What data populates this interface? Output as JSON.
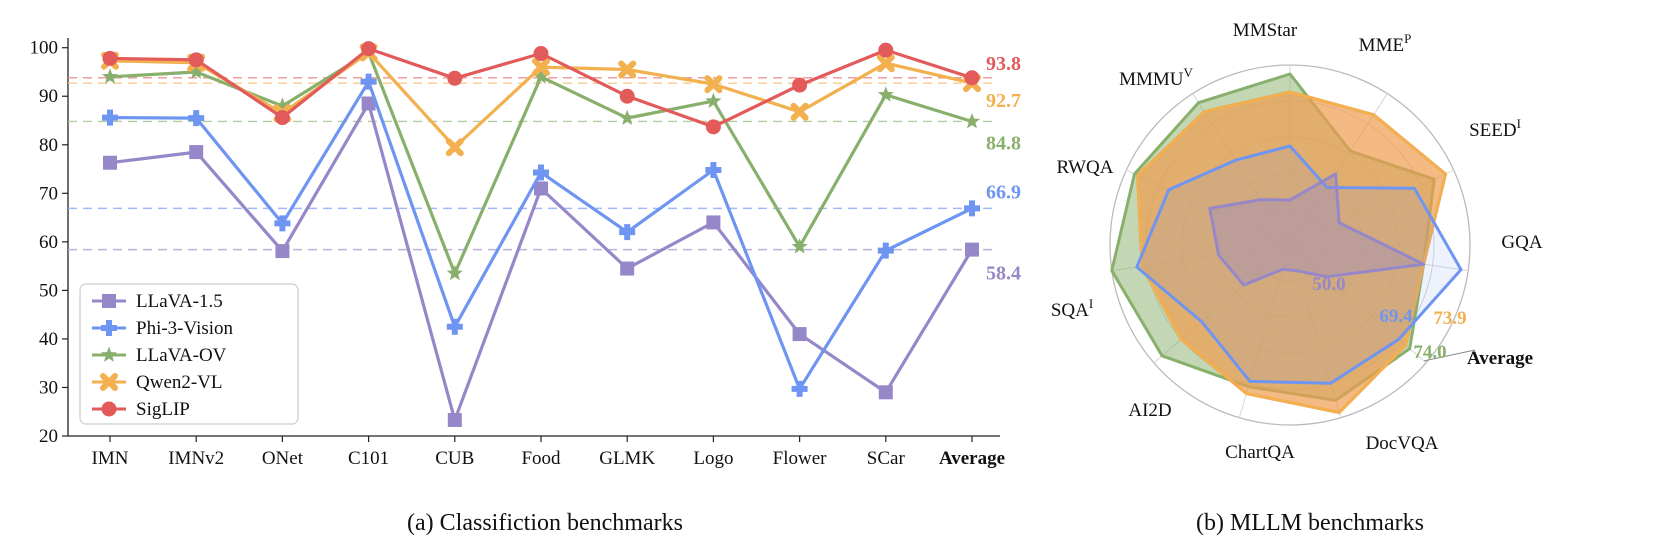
{
  "colors": {
    "LLaVA-1.5": "#9688c8",
    "Phi-3-Vision": "#6e95f2",
    "LLaVA-OV": "#88b06c",
    "Qwen2-VL": "#f2b04f",
    "SigLIP": "#e25a5a"
  },
  "chart_data": [
    {
      "type": "line",
      "caption": "(a) Classifiction benchmarks",
      "categories": [
        "IMN",
        "IMNv2",
        "ONet",
        "C101",
        "CUB",
        "Food",
        "GLMK",
        "Logo",
        "Flower",
        "SCar",
        "Average"
      ],
      "emphasized_category": "Average",
      "yticks": [
        20,
        30,
        40,
        50,
        60,
        70,
        80,
        90,
        100
      ],
      "ylim": [
        20,
        102
      ],
      "grid": false,
      "legend_position": "lower-left",
      "series": [
        {
          "name": "LLaVA-1.5",
          "marker": "square",
          "values": [
            76.3,
            78.5,
            58.1,
            88.5,
            23.3,
            71.0,
            54.5,
            64.0,
            41.0,
            29.0,
            58.4
          ],
          "average_label": "58.4"
        },
        {
          "name": "Phi-3-Vision",
          "marker": "plus",
          "values": [
            85.6,
            85.5,
            63.8,
            93.0,
            42.5,
            74.3,
            62.0,
            74.8,
            29.7,
            58.2,
            66.9
          ],
          "average_label": "66.9"
        },
        {
          "name": "LLaVA-OV",
          "marker": "star",
          "values": [
            94.0,
            95.0,
            88.0,
            99.0,
            53.5,
            94.0,
            85.5,
            89.0,
            59.0,
            90.3,
            84.8
          ],
          "average_label": "84.8"
        },
        {
          "name": "Qwen2-VL",
          "marker": "x",
          "values": [
            97.3,
            96.9,
            86.5,
            99.0,
            79.5,
            96.0,
            95.5,
            92.5,
            86.8,
            96.8,
            92.7
          ],
          "average_label": "92.7"
        },
        {
          "name": "SigLIP",
          "marker": "circle",
          "values": [
            97.8,
            97.5,
            85.6,
            99.8,
            93.7,
            98.8,
            90.0,
            83.7,
            92.3,
            99.5,
            93.8
          ],
          "average_label": "93.8"
        }
      ]
    },
    {
      "type": "radar",
      "caption": "(b) MLLM benchmarks",
      "axes": [
        {
          "name": "MMStar",
          "sup": ""
        },
        {
          "name": "MME",
          "sup": "P"
        },
        {
          "name": "SEED",
          "sup": "I"
        },
        {
          "name": "GQA",
          "sup": ""
        },
        {
          "name": "Average",
          "sup": ""
        },
        {
          "name": "DocVQA",
          "sup": ""
        },
        {
          "name": "ChartQA",
          "sup": ""
        },
        {
          "name": "AI2D",
          "sup": ""
        },
        {
          "name": "SQA",
          "sup": "I"
        },
        {
          "name": "RWQA",
          "sup": ""
        },
        {
          "name": "MMMU",
          "sup": "V"
        }
      ],
      "emphasized_axis": "Average",
      "series": [
        {
          "name": "LLaVA-1.5",
          "values": [
            0.25,
            0.47,
            0.3,
            0.75,
            0.27,
            0.15,
            0.14,
            0.34,
            0.4,
            0.49,
            0.3
          ],
          "average_label": "50.0"
        },
        {
          "name": "Phi-3-Vision",
          "values": [
            0.55,
            0.38,
            0.76,
            0.96,
            0.8,
            0.8,
            0.79,
            0.65,
            0.86,
            0.74,
            0.56
          ],
          "average_label": "69.4"
        },
        {
          "name": "LLaVA-OV",
          "values": [
            0.95,
            0.62,
            0.88,
            0.75,
            0.88,
            0.9,
            0.82,
            0.94,
            1.0,
            0.95,
            0.94
          ],
          "average_label": "74.0"
        },
        {
          "name": "Qwen2-VL",
          "values": [
            0.85,
            0.86,
            0.95,
            0.75,
            0.85,
            0.97,
            0.86,
            0.8,
            0.83,
            0.93,
            0.88
          ],
          "average_label": "73.9"
        },
        {
          "name": "SigLIP",
          "values": [
            0.85,
            0.86,
            0.95,
            0.75,
            0.85,
            0.97,
            0.86,
            0.8,
            0.83,
            0.93,
            0.88
          ],
          "average_label": ""
        }
      ]
    }
  ]
}
